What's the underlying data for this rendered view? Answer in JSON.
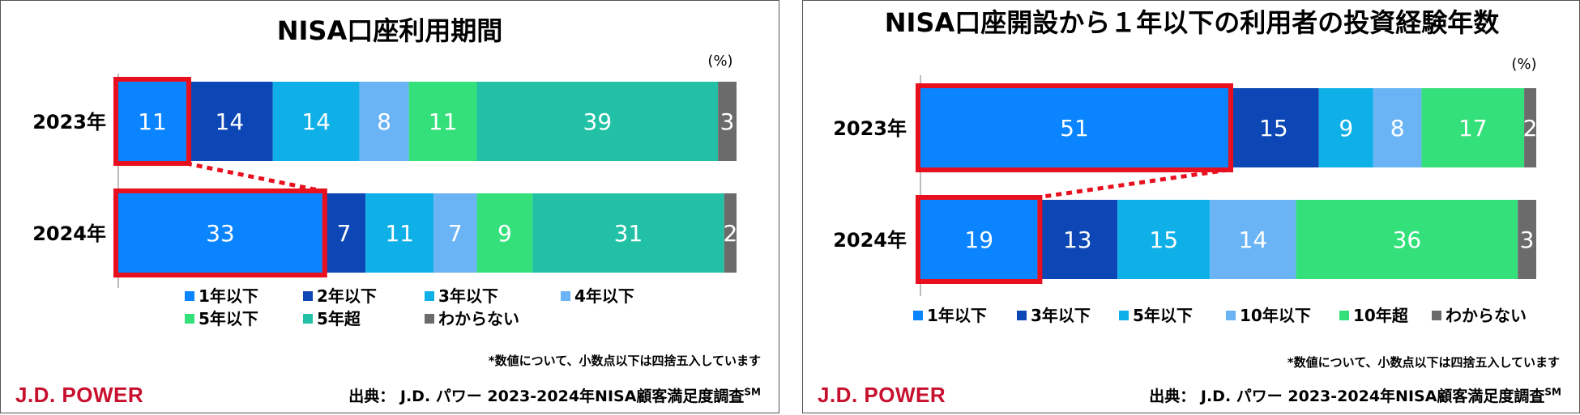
{
  "colors": {
    "c1": "#0a84ff",
    "c2": "#0d47b5",
    "c3": "#0fb0e8",
    "c4": "#6ab4f5",
    "c5": "#33e07a",
    "c6": "#22c1a5",
    "c7": "#6b6b6b",
    "highlight": "#e8101e"
  },
  "chart_data": [
    {
      "type": "bar",
      "stacked": true,
      "orientation": "horizontal",
      "title": "NISA口座利用期間",
      "unit": "(%)",
      "categories": [
        "2023年",
        "2024年"
      ],
      "series": [
        {
          "name": "1年以下",
          "values": [
            11,
            33
          ]
        },
        {
          "name": "2年以下",
          "values": [
            14,
            7
          ]
        },
        {
          "name": "3年以下",
          "values": [
            14,
            11
          ]
        },
        {
          "name": "4年以下",
          "values": [
            8,
            7
          ]
        },
        {
          "name": "5年以下",
          "values": [
            11,
            9
          ]
        },
        {
          "name": "5年超",
          "values": [
            39,
            31
          ]
        },
        {
          "name": "わからない",
          "values": [
            3,
            2
          ]
        }
      ],
      "series_colors": [
        "#0a84ff",
        "#0d47b5",
        "#0fb0e8",
        "#6ab4f5",
        "#33e07a",
        "#22c1a5",
        "#6b6b6b"
      ],
      "highlight_series": 0,
      "legend_placement": "bottom",
      "note": "*数値について、小数点以下は四捨五入しています",
      "source_prefix": "出典：",
      "source": "J.D. パワー 2023-2024年NISA顧客満足度調査",
      "source_sup": "SM",
      "brand": "J.D. POWER"
    },
    {
      "type": "bar",
      "stacked": true,
      "orientation": "horizontal",
      "title": "NISA口座開設から１年以下の利用者の投資経験年数",
      "unit": "(%)",
      "categories": [
        "2023年",
        "2024年"
      ],
      "series": [
        {
          "name": "1年以下",
          "values": [
            51,
            19
          ]
        },
        {
          "name": "3年以下",
          "values": [
            15,
            13
          ]
        },
        {
          "name": "5年以下",
          "values": [
            9,
            15
          ]
        },
        {
          "name": "10年以下",
          "values": [
            8,
            14
          ]
        },
        {
          "name": "10年超",
          "values": [
            17,
            36
          ]
        },
        {
          "name": "わからない",
          "values": [
            2,
            3
          ]
        }
      ],
      "series_colors": [
        "#0a84ff",
        "#0d47b5",
        "#0fb0e8",
        "#6ab4f5",
        "#33e07a",
        "#6b6b6b"
      ],
      "highlight_series": 0,
      "legend_placement": "bottom",
      "note": "*数値について、小数点以下は四捨五入しています",
      "source_prefix": "出典：",
      "source": "J.D. パワー 2023-2024年NISA顧客満足度調査",
      "source_sup": "SM",
      "brand": "J.D. POWER"
    }
  ]
}
